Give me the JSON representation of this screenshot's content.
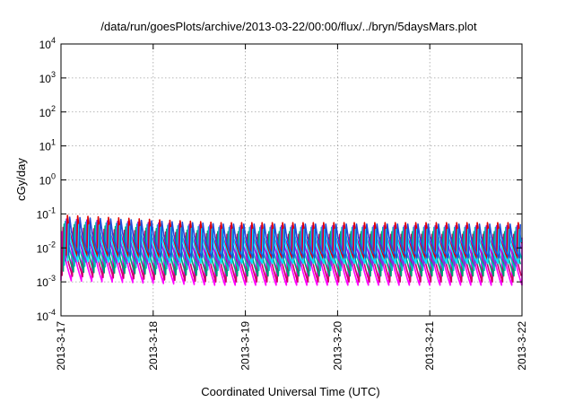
{
  "chart_data": {
    "type": "line",
    "title": "/data/run/goesPlots/archive/2013-03-22/00:00/flux/../bryn/5daysMars.plot",
    "xlabel": "Coordinated Universal Time (UTC)",
    "ylabel": "cGy/day",
    "y_scale": "log",
    "ylim": [
      0.0001,
      10000
    ],
    "y_ticks": [
      {
        "value": 0.0001,
        "mantissa": "10",
        "exp": "-4"
      },
      {
        "value": 0.001,
        "mantissa": "10",
        "exp": "-3"
      },
      {
        "value": 0.01,
        "mantissa": "10",
        "exp": "-2"
      },
      {
        "value": 0.1,
        "mantissa": "10",
        "exp": "-1"
      },
      {
        "value": 1,
        "mantissa": "10",
        "exp": "0"
      },
      {
        "value": 10,
        "mantissa": "10",
        "exp": "1"
      },
      {
        "value": 100,
        "mantissa": "10",
        "exp": "2"
      },
      {
        "value": 1000,
        "mantissa": "10",
        "exp": "3"
      },
      {
        "value": 10000,
        "mantissa": "10",
        "exp": "4"
      }
    ],
    "xlim": [
      "2013-3-17",
      "2013-3-22"
    ],
    "x_ticks": [
      "2013-3-17",
      "2013-3-18",
      "2013-3-19",
      "2013-3-20",
      "2013-3-21",
      "2013-3-22"
    ],
    "grid": true,
    "pattern": "sawtooth, ~9 cycles per day, sharp rise then decay",
    "cycles_per_day": 9,
    "series": [
      {
        "color": "#ff00ff",
        "peak": [
          0.03,
          0.02
        ],
        "trough": [
          0.0011,
          0.0008
        ]
      },
      {
        "color": "#cc0066",
        "peak": [
          0.04,
          0.025
        ],
        "trough": [
          0.0015,
          0.001
        ]
      },
      {
        "color": "#009e73",
        "peak": [
          0.05,
          0.03
        ],
        "trough": [
          0.002,
          0.0015
        ]
      },
      {
        "color": "#00bfbf",
        "peak": [
          0.06,
          0.04
        ],
        "trough": [
          0.003,
          0.0022
        ]
      },
      {
        "color": "#8a2be2",
        "peak": [
          0.07,
          0.045
        ],
        "trough": [
          0.004,
          0.003
        ]
      },
      {
        "color": "#e00000",
        "peak": [
          0.09,
          0.055
        ],
        "trough": [
          0.006,
          0.005
        ]
      },
      {
        "color": "#00e5ff",
        "peak": [
          0.05,
          0.035
        ],
        "trough": [
          0.004,
          0.0035
        ]
      },
      {
        "color": "#1f4fd8",
        "peak": [
          0.08,
          0.05
        ],
        "trough": [
          0.006,
          0.005
        ]
      }
    ]
  }
}
